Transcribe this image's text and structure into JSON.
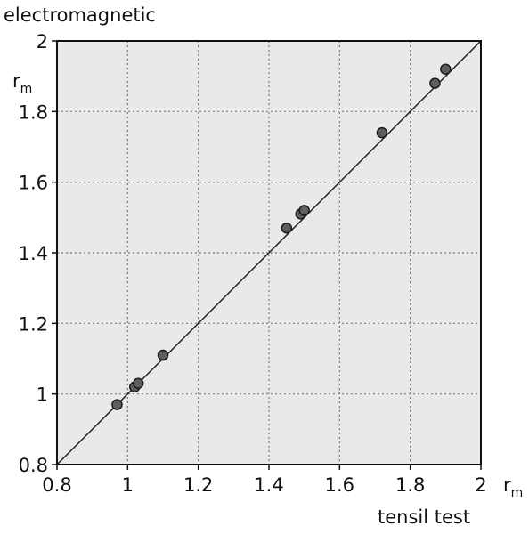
{
  "chart_data": {
    "type": "scatter",
    "title": "",
    "ylabel": "electromagnetic",
    "xlabel": "tensil test",
    "x_unit": {
      "main": "r",
      "sub": "m"
    },
    "y_unit": {
      "main": "r",
      "sub": "m"
    },
    "xlim": [
      0.8,
      2.0
    ],
    "ylim": [
      0.8,
      2.0
    ],
    "xticks": [
      0.8,
      1.0,
      1.2,
      1.4,
      1.6,
      1.8,
      2.0
    ],
    "yticks": [
      0.8,
      1.0,
      1.2,
      1.4,
      1.6,
      1.8,
      2.0
    ],
    "xtick_labels": [
      "0.8",
      "1",
      "1.2",
      "1.4",
      "1.6",
      "1.8",
      "2"
    ],
    "ytick_labels": [
      "0.8",
      "1",
      "1.2",
      "1.4",
      "1.6",
      "1.8",
      "2"
    ],
    "grid": true,
    "grid_style": "dotted",
    "reference_line": {
      "from": [
        0.8,
        0.8
      ],
      "to": [
        2.0,
        2.0
      ]
    },
    "points": [
      {
        "x": 0.97,
        "y": 0.97
      },
      {
        "x": 1.02,
        "y": 1.02
      },
      {
        "x": 1.03,
        "y": 1.03
      },
      {
        "x": 1.1,
        "y": 1.11
      },
      {
        "x": 1.45,
        "y": 1.47
      },
      {
        "x": 1.49,
        "y": 1.51
      },
      {
        "x": 1.5,
        "y": 1.52
      },
      {
        "x": 1.72,
        "y": 1.74
      },
      {
        "x": 1.87,
        "y": 1.88
      },
      {
        "x": 1.9,
        "y": 1.92
      }
    ],
    "colors": {
      "background": "#e9e9e9",
      "point_fill": "#5e5e5e",
      "point_stroke": "#1a1a1a",
      "line": "#1a1a1a",
      "grid": "#7a7a7a"
    }
  }
}
